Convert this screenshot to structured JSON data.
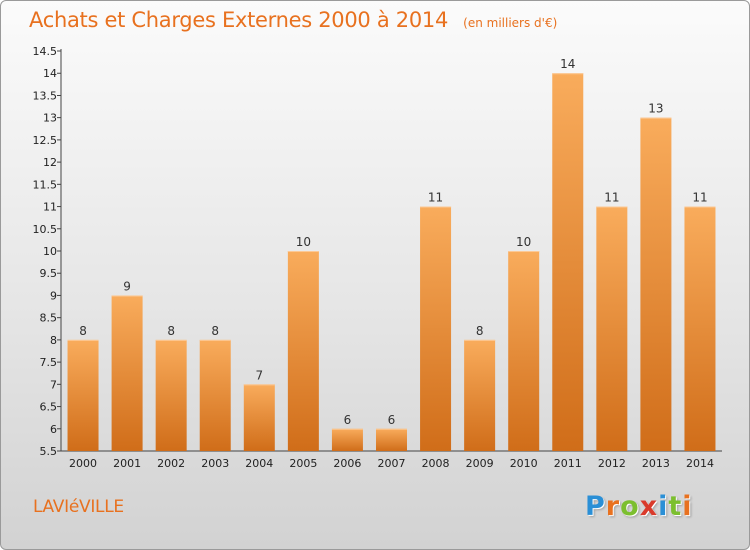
{
  "header": {
    "title": "Achats et Charges Externes 2000 à 2014",
    "subtitle": "(en milliers d'€)"
  },
  "footer": {
    "place": "LAVIéVILLE",
    "logo": "Proxiti",
    "logo_colors": [
      "#2a8fd6",
      "#e8711f",
      "#7cbf2f",
      "#d93a2b",
      "#2a8fd6",
      "#7cbf2f",
      "#e8711f"
    ]
  },
  "colors": {
    "bar_light": "#f9ac5c",
    "bar_dark": "#d06d19",
    "accent": "#e8711f"
  },
  "chart_data": {
    "type": "bar",
    "title": "Achats et Charges Externes 2000 à 2014",
    "subtitle": "(en milliers d'€)",
    "categories": [
      "2000",
      "2001",
      "2002",
      "2003",
      "2004",
      "2005",
      "2006",
      "2007",
      "2008",
      "2009",
      "2010",
      "2011",
      "2012",
      "2013",
      "2014"
    ],
    "values": [
      8,
      9,
      8,
      8,
      7,
      10,
      6,
      6,
      11,
      8,
      10,
      14,
      11,
      13,
      11
    ],
    "labels": [
      "8",
      "9",
      "8",
      "8",
      "7",
      "10",
      "6",
      "6",
      "11",
      "8",
      "10",
      "14",
      "11",
      "13",
      "11"
    ],
    "ylim": [
      5.5,
      14.5
    ],
    "yticks": [
      5.5,
      6,
      6.5,
      7,
      7.5,
      8,
      8.5,
      9,
      9.5,
      10,
      10.5,
      11,
      11.5,
      12,
      12.5,
      13,
      13.5,
      14,
      14.5
    ],
    "ytick_labels": [
      "5.5",
      "6",
      "6.5",
      "7",
      "7.5",
      "8",
      "8.5",
      "9",
      "9.5",
      "10",
      "10.5",
      "11",
      "11.5",
      "12",
      "12.5",
      "13",
      "13.5",
      "14",
      "14.5"
    ],
    "grid": false,
    "legend": "none"
  }
}
